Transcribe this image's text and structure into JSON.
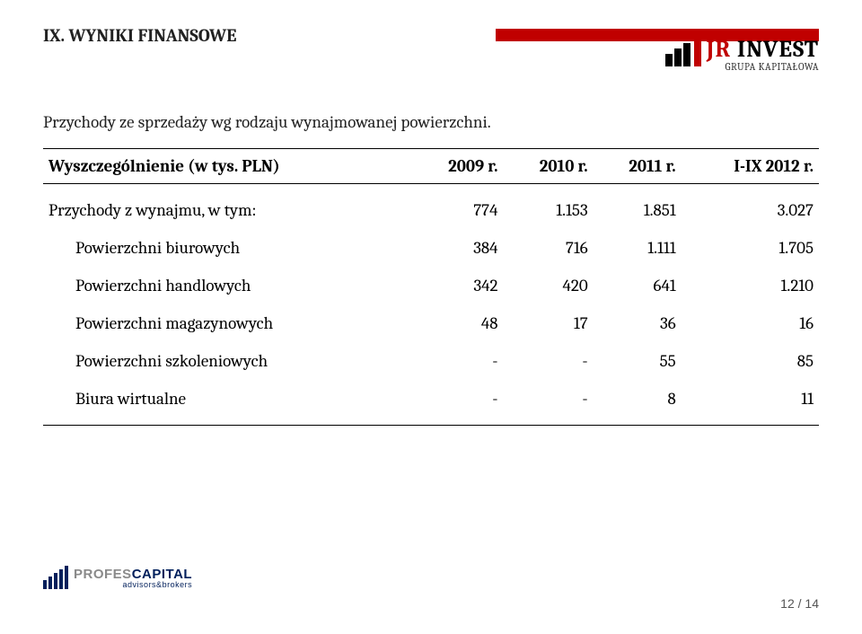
{
  "section_title": "IX. WYNIKI FINANSOWE",
  "logo": {
    "brand_red": "JR",
    "brand_black": "INVEST",
    "subtitle": "GRUPA KAPITAŁOWA",
    "accent_color": "#c00000"
  },
  "table_title": "Przychody ze sprzedaży wg rodzaju wynajmowanej powierzchni.",
  "table": {
    "columns": [
      "Wyszczególnienie (w tys. PLN)",
      "2009 r.",
      "2010 r.",
      "2011 r.",
      "I-IX 2012 r."
    ],
    "rows": [
      {
        "label": "Przychody z wynajmu, w tym:",
        "indent": false,
        "cells": [
          "774",
          "1.153",
          "1.851",
          "3.027"
        ]
      },
      {
        "label": "Powierzchni biurowych",
        "indent": true,
        "cells": [
          "384",
          "716",
          "1.111",
          "1.705"
        ]
      },
      {
        "label": "Powierzchni handlowych",
        "indent": true,
        "cells": [
          "342",
          "420",
          "641",
          "1.210"
        ]
      },
      {
        "label": "Powierzchni magazynowych",
        "indent": true,
        "cells": [
          "48",
          "17",
          "36",
          "16"
        ]
      },
      {
        "label": "Powierzchni szkoleniowych",
        "indent": true,
        "cells": [
          "-",
          "-",
          "55",
          "85"
        ]
      },
      {
        "label": "Biura wirtualne",
        "indent": true,
        "cells": [
          "-",
          "-",
          "8",
          "11"
        ]
      }
    ]
  },
  "footer_logo": {
    "part1": "PROFES",
    "part2": "CAPITAL",
    "sub": "advisors&brokers"
  },
  "page_number": "12 / 14"
}
